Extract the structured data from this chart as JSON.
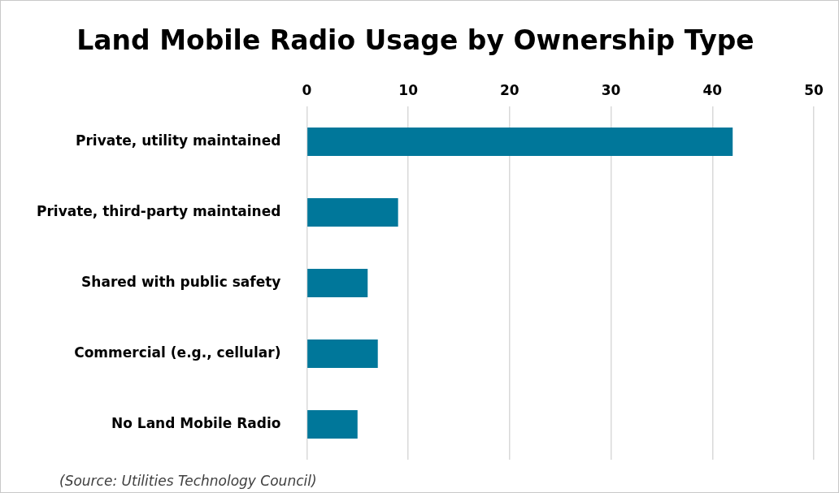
{
  "chart_data": {
    "type": "bar",
    "orientation": "horizontal",
    "title": "Land Mobile Radio Usage by Ownership Type",
    "categories": [
      "Private, utility maintained",
      "Private, third-party maintained",
      "Shared with public safety",
      "Commercial (e.g., cellular)",
      "No Land Mobile Radio"
    ],
    "values": [
      42,
      9,
      6,
      7,
      5
    ],
    "color": "#00779a",
    "xlim": [
      0,
      50
    ],
    "xticks": [
      0,
      10,
      20,
      30,
      40,
      50
    ],
    "grid": "x",
    "annotations": [
      "(Source: Utilities Technology Council)"
    ]
  }
}
